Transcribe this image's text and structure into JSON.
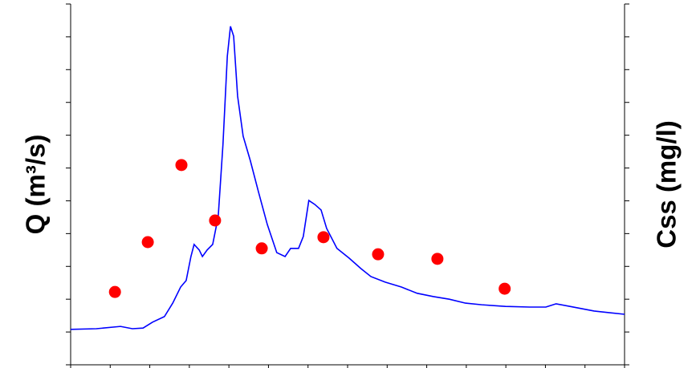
{
  "chart_data": {
    "type": "line",
    "y_label": "Q (m³/s)",
    "y2_label": "Css (mg/l)",
    "xlim": [
      0,
      14
    ],
    "xticks": [
      0,
      1,
      2,
      3,
      4,
      5,
      6,
      7,
      8,
      9,
      10,
      11,
      12,
      13,
      14
    ],
    "ylim": [
      0,
      11
    ],
    "yticks": [
      0,
      1,
      2,
      3,
      4,
      5,
      6,
      7,
      8,
      9,
      10,
      11
    ],
    "y2lim": [
      0,
      11
    ],
    "y2ticks": [
      0,
      1,
      2,
      3,
      4,
      5,
      6,
      7,
      8,
      9,
      10,
      11
    ],
    "series": [
      {
        "type": "line",
        "color": "#0000ff",
        "axis": "y",
        "x": [
          0,
          0.65,
          1.26,
          1.56,
          1.83,
          2.07,
          2.37,
          2.58,
          2.78,
          2.92,
          3.04,
          3.12,
          3.25,
          3.33,
          3.45,
          3.59,
          3.73,
          3.85,
          3.96,
          4.04,
          4.12,
          4.22,
          4.36,
          4.54,
          4.75,
          4.97,
          5.21,
          5.42,
          5.56,
          5.76,
          5.88,
          6.02,
          6.17,
          6.33,
          6.47,
          6.73,
          7.04,
          7.34,
          7.59,
          7.95,
          8.36,
          8.76,
          9.17,
          9.57,
          9.98,
          10.39,
          10.99,
          11.6,
          12.01,
          12.27,
          12.62,
          13.23,
          14.0
        ],
        "values": [
          1.08,
          1.1,
          1.17,
          1.1,
          1.12,
          1.3,
          1.47,
          1.88,
          2.37,
          2.57,
          3.3,
          3.67,
          3.5,
          3.3,
          3.5,
          3.67,
          4.52,
          6.72,
          9.41,
          10.32,
          10.02,
          8.19,
          6.97,
          6.23,
          5.26,
          4.28,
          3.42,
          3.3,
          3.55,
          3.55,
          3.91,
          5.01,
          4.89,
          4.72,
          4.16,
          3.55,
          3.25,
          2.93,
          2.69,
          2.52,
          2.37,
          2.18,
          2.08,
          2.0,
          1.88,
          1.83,
          1.78,
          1.76,
          1.76,
          1.86,
          1.78,
          1.64,
          1.54
        ]
      },
      {
        "type": "scatter",
        "color": "#ff0000",
        "axis": "y2",
        "x": [
          1.12,
          1.95,
          2.8,
          3.65,
          4.83,
          6.39,
          7.77,
          9.27,
          10.97
        ],
        "values": [
          2.22,
          3.74,
          6.09,
          4.4,
          3.55,
          3.89,
          3.37,
          3.23,
          2.32
        ]
      }
    ]
  }
}
